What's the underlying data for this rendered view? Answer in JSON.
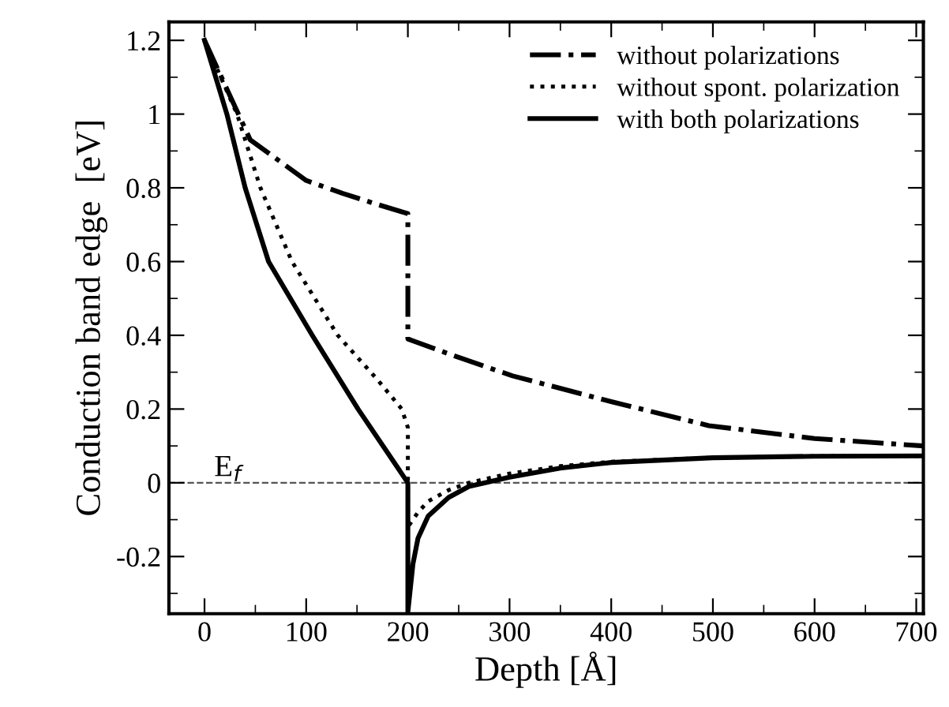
{
  "chart_data": {
    "type": "line",
    "xlabel": "Depth [Å]",
    "ylabel": "Conduction band edge  [eV]",
    "xlim": [
      -35,
      707
    ],
    "ylim": [
      -0.355,
      1.25
    ],
    "xticks": [
      0,
      100,
      200,
      300,
      400,
      500,
      600,
      700
    ],
    "yticks": [
      {
        "value": -0.2,
        "label": "-0.2"
      },
      0,
      0.2,
      0.4,
      0.6,
      0.8,
      1,
      1.2
    ],
    "grid": false,
    "legend": "top right",
    "marker": "none",
    "ref_lines": [
      {
        "axis": "y",
        "value": 0,
        "label": "E$_{f}$",
        "line_style": "dashed",
        "color": "#555555"
      }
    ],
    "series": [
      {
        "name": "without polarizations",
        "color": "#000000",
        "line_style": "dashdot",
        "x": [
          0,
          45,
          100,
          136,
          170,
          200,
          200,
          250,
          303,
          400,
          496,
          600,
          707
        ],
        "values": [
          1.2,
          0.93,
          0.82,
          0.785,
          0.755,
          0.73,
          0.39,
          0.34,
          0.29,
          0.22,
          0.155,
          0.12,
          0.1
        ]
      },
      {
        "name": "without spont. polarization",
        "color": "#000000",
        "line_style": "dotted",
        "x": [
          0,
          32,
          55,
          86,
          131,
          170,
          194,
          200,
          200,
          210,
          220,
          240,
          260,
          300,
          350,
          400,
          500,
          600,
          707
        ],
        "values": [
          1.2,
          1.0,
          0.8,
          0.6,
          0.4,
          0.28,
          0.2,
          0.15,
          -0.12,
          -0.08,
          -0.05,
          -0.02,
          0.0,
          0.025,
          0.045,
          0.057,
          0.068,
          0.072,
          0.073
        ]
      },
      {
        "name": "with both polarizations",
        "color": "#000000",
        "line_style": "solid",
        "x": [
          0,
          22,
          40,
          63,
          106,
          151,
          200,
          200,
          205,
          210,
          220,
          240,
          260,
          300,
          350,
          400,
          500,
          600,
          707
        ],
        "values": [
          1.2,
          1.0,
          0.8,
          0.6,
          0.4,
          0.2,
          0.0,
          -0.35,
          -0.22,
          -0.15,
          -0.09,
          -0.04,
          -0.01,
          0.015,
          0.04,
          0.055,
          0.068,
          0.072,
          0.073
        ]
      }
    ]
  }
}
